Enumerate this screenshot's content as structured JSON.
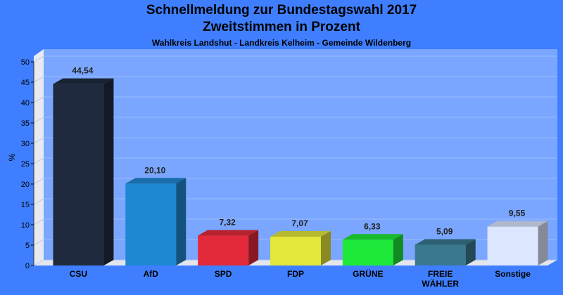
{
  "title": "Schnellmeldung zur Bundestagswahl 2017",
  "subtitle": "Zweitstimmen in Prozent",
  "subsubtitle": "Wahlkreis Landshut - Landkreis Kelheim - Gemeinde Wildenberg",
  "chart_data": {
    "type": "bar",
    "ylabel": "%",
    "ylim": [
      0,
      50
    ],
    "yticks": [
      0,
      5,
      10,
      15,
      20,
      25,
      30,
      35,
      40,
      45,
      50
    ],
    "categories": [
      "CSU",
      "AfD",
      "SPD",
      "FDP",
      "GRÜNE",
      "FREIE WÄHLER",
      "Sonstige"
    ],
    "category_lines": [
      [
        "CSU"
      ],
      [
        "AfD"
      ],
      [
        "SPD"
      ],
      [
        "FDP"
      ],
      [
        "GRÜNE"
      ],
      [
        "FREIE",
        "WÄHLER"
      ],
      [
        "Sonstige"
      ]
    ],
    "values": [
      44.54,
      20.1,
      7.32,
      7.07,
      6.33,
      5.09,
      9.55
    ],
    "value_labels": [
      "44,54",
      "20,10",
      "7,32",
      "7,07",
      "6,33",
      "5,09",
      "9,55"
    ],
    "colors": [
      "#1f2a3f",
      "#1f88d2",
      "#e32a3a",
      "#e4e63a",
      "#1ee83a",
      "#3a7890",
      "#dde6ff"
    ],
    "grid": true
  }
}
